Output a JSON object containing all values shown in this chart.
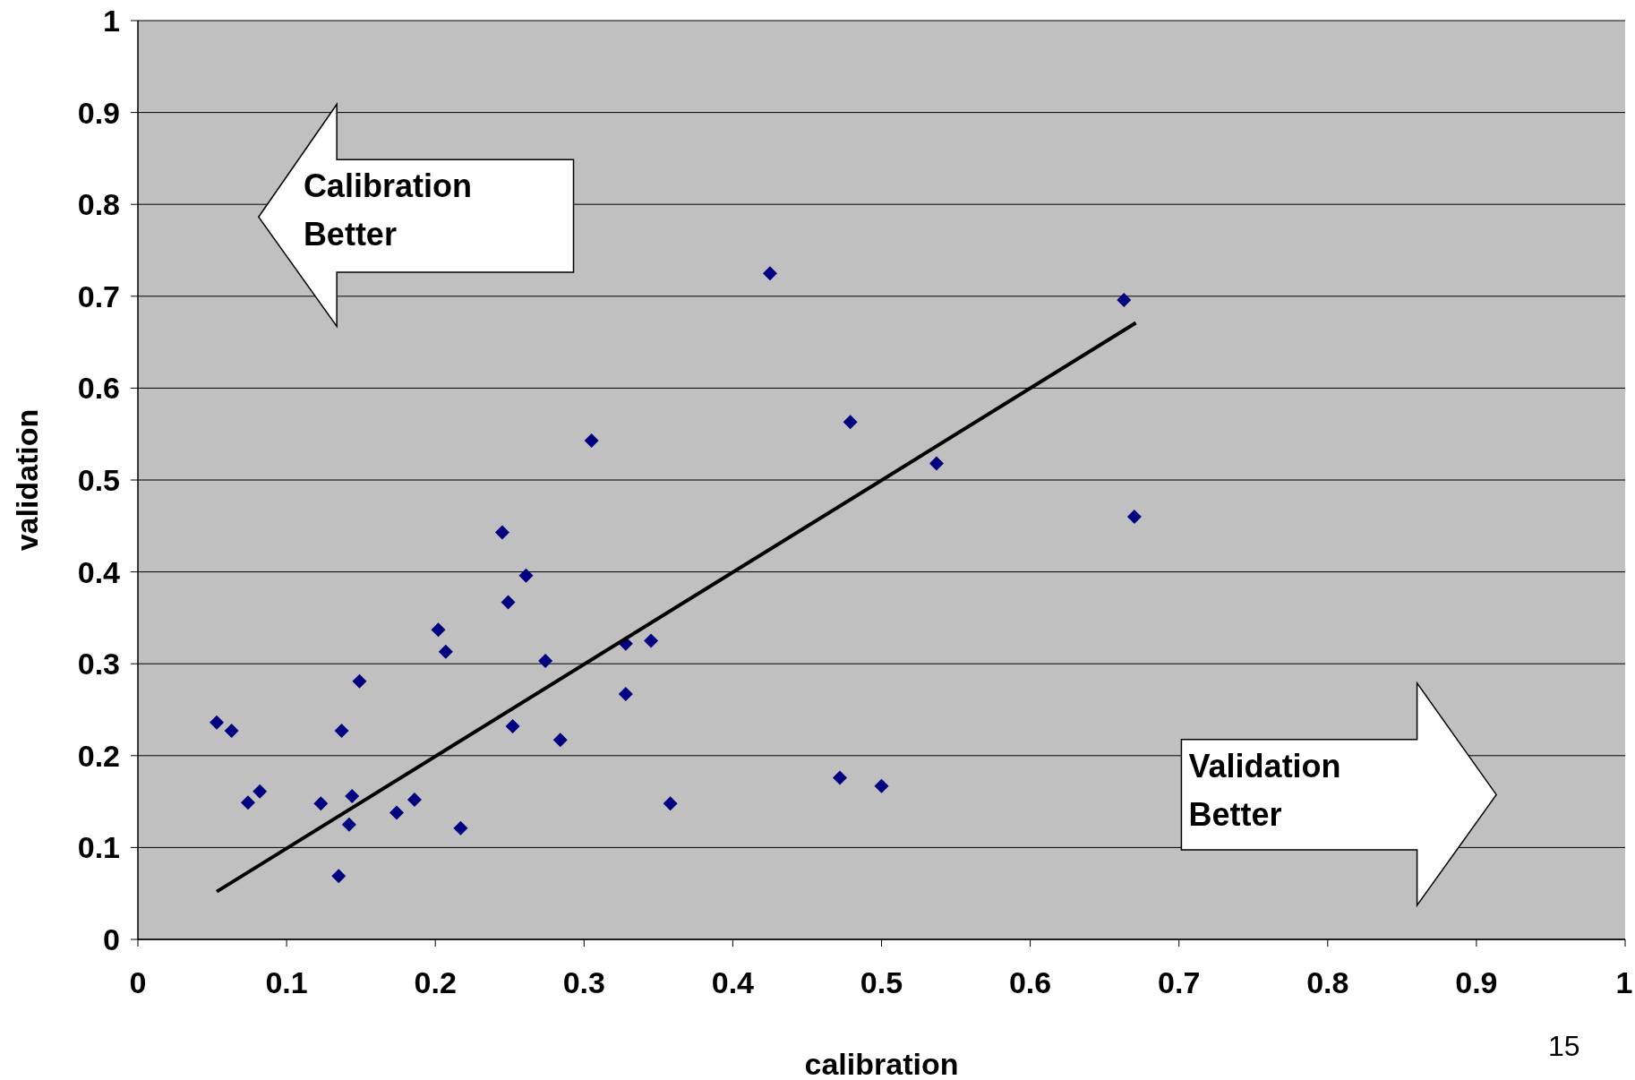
{
  "chart_data": {
    "type": "scatter",
    "xlabel": "calibration",
    "ylabel": "validation",
    "xlim": [
      0,
      1
    ],
    "ylim": [
      0,
      1
    ],
    "xticks": [
      0,
      0.1,
      0.2,
      0.3,
      0.4,
      0.5,
      0.6,
      0.7,
      0.8,
      0.9,
      1
    ],
    "yticks": [
      0,
      0.1,
      0.2,
      0.3,
      0.4,
      0.5,
      0.6,
      0.7,
      0.8,
      0.9,
      1
    ],
    "grid": "y",
    "series": [
      {
        "marker": "diamond",
        "color": "#000080",
        "x": [
          0.053,
          0.063,
          0.074,
          0.082,
          0.123,
          0.135,
          0.137,
          0.142,
          0.144,
          0.149,
          0.174,
          0.186,
          0.202,
          0.207,
          0.217,
          0.245,
          0.249,
          0.252,
          0.261,
          0.274,
          0.284,
          0.305,
          0.328,
          0.328,
          0.345,
          0.358,
          0.425,
          0.472,
          0.479,
          0.5,
          0.537,
          0.663,
          0.67
        ],
        "values": [
          0.236,
          0.227,
          0.149,
          0.161,
          0.148,
          0.069,
          0.227,
          0.125,
          0.156,
          0.281,
          0.138,
          0.152,
          0.337,
          0.313,
          0.121,
          0.443,
          0.367,
          0.232,
          0.396,
          0.303,
          0.217,
          0.543,
          0.322,
          0.267,
          0.325,
          0.148,
          0.725,
          0.176,
          0.563,
          0.167,
          0.518,
          0.696,
          0.46
        ]
      },
      {
        "type": "line",
        "color": "#000000",
        "x": [
          0.053,
          0.671
        ],
        "values": [
          0.052,
          0.671
        ]
      }
    ],
    "annotations": [
      "Calibration Better",
      "Validation Better",
      "15"
    ]
  }
}
